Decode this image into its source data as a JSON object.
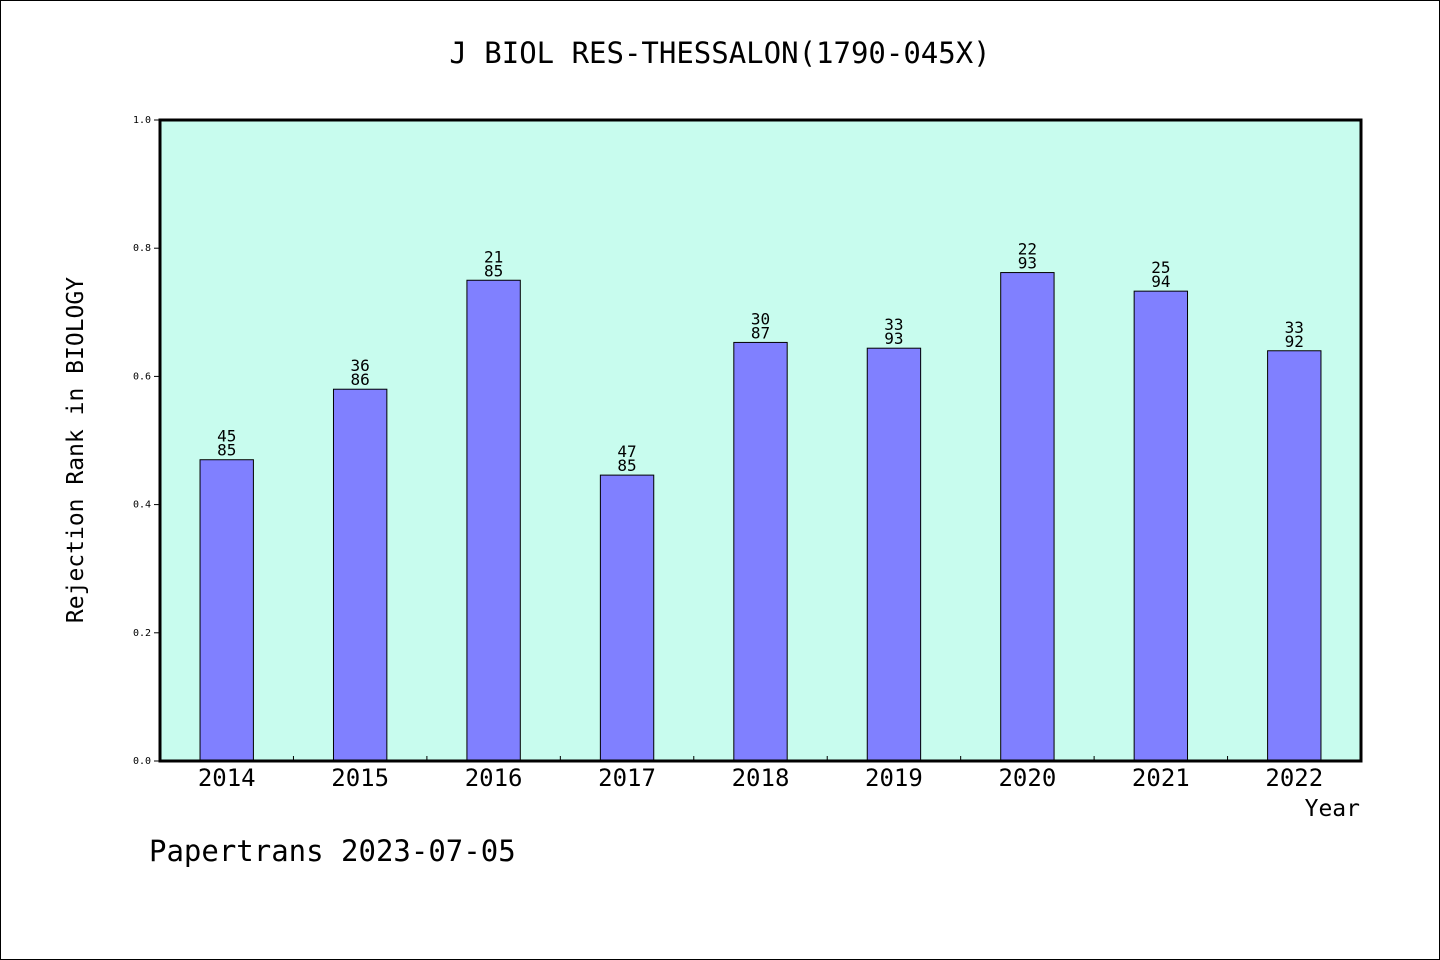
{
  "chart_data": {
    "type": "bar",
    "title": "J BIOL RES-THESSALON(1790-045X)",
    "xlabel": "Year",
    "ylabel": "Rejection Rank in BIOLOGY",
    "ylim": [
      0,
      1.0
    ],
    "yticks": [
      "0.0",
      "0.2",
      "0.4",
      "0.6",
      "0.8",
      "1.0"
    ],
    "categories": [
      "2014",
      "2015",
      "2016",
      "2017",
      "2018",
      "2019",
      "2020",
      "2021",
      "2022"
    ],
    "values": [
      0.47,
      0.58,
      0.75,
      0.446,
      0.653,
      0.644,
      0.762,
      0.733,
      0.64
    ],
    "rank": [
      "45",
      "36",
      "21",
      "47",
      "30",
      "33",
      "22",
      "25",
      "33"
    ],
    "total": [
      "85",
      "86",
      "85",
      "85",
      "87",
      "93",
      "93",
      "94",
      "92"
    ],
    "grid": false,
    "colors": {
      "plot_bg": "#c8fcee",
      "bar": "#8080ff"
    }
  },
  "footer": "Papertrans 2023-07-05"
}
